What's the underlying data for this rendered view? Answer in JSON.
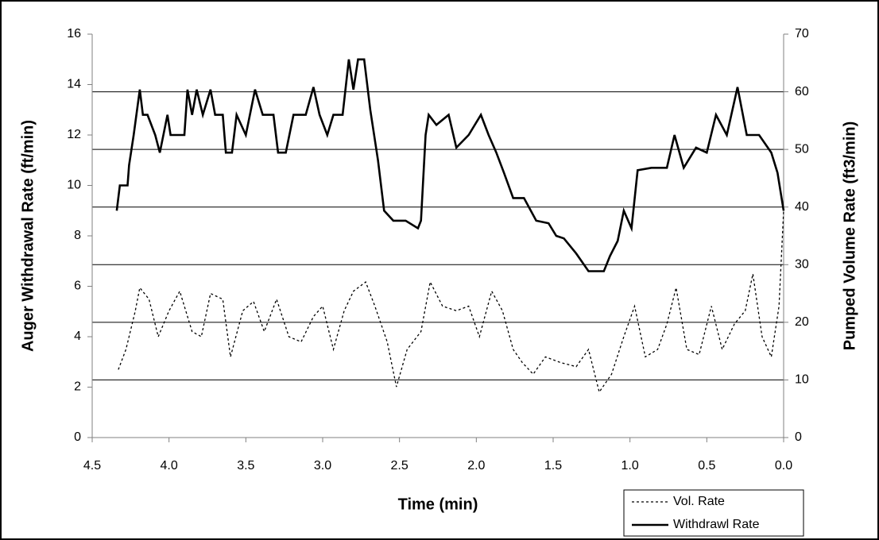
{
  "chart_data": {
    "type": "line",
    "xlabel": "Time (min)",
    "ylabel": "Auger Withdrawal Rate (ft/min)",
    "y2label": "Pumped Volume Rate (ft3/min)",
    "xlim": [
      4.5,
      0.0
    ],
    "xticks": [
      4.5,
      {
        "value": 4.0,
        "label": "4.0"
      },
      3.5,
      {
        "value": 3.0,
        "label": "3.0"
      },
      2.5,
      {
        "value": 2.0,
        "label": "2.0"
      },
      1.5,
      {
        "value": 1.0,
        "label": "1.0"
      },
      0.5,
      {
        "value": 0.0,
        "label": "0.0"
      }
    ],
    "ylim": [
      0,
      16
    ],
    "yticks": [
      0,
      2,
      4,
      6,
      8,
      10,
      12,
      14,
      16
    ],
    "y2lim": [
      0,
      70
    ],
    "y2ticks": [
      0,
      10,
      20,
      30,
      40,
      50,
      60,
      70
    ],
    "grid": "y2",
    "legend": "bottom-right",
    "series": [
      {
        "name": "Vol. Rate",
        "color": "#000000",
        "line_style": "dashed",
        "axis": "y2",
        "x": [
          4.33,
          4.28,
          4.22,
          4.19,
          4.13,
          4.07,
          4.0,
          3.93,
          3.85,
          3.79,
          3.73,
          3.65,
          3.6,
          3.52,
          3.45,
          3.38,
          3.3,
          3.22,
          3.14,
          3.06,
          3.0,
          2.93,
          2.86,
          2.8,
          2.72,
          2.66,
          2.58,
          2.52,
          2.45,
          2.36,
          2.3,
          2.22,
          2.13,
          2.05,
          1.98,
          1.9,
          1.83,
          1.76,
          1.7,
          1.63,
          1.55,
          1.45,
          1.35,
          1.27,
          1.2,
          1.12,
          1.04,
          0.97,
          0.9,
          0.82,
          0.76,
          0.7,
          0.63,
          0.55,
          0.47,
          0.4,
          0.32,
          0.25,
          0.2,
          0.14,
          0.08,
          0.03,
          0.0
        ],
        "values": [
          11.8,
          15.3,
          21.9,
          26,
          24,
          17.5,
          22,
          25.4,
          18.4,
          17.5,
          25,
          24,
          14,
          22,
          23.6,
          18.4,
          24,
          17.5,
          16.6,
          21,
          22.8,
          15.3,
          22,
          25.4,
          27,
          22.8,
          16.6,
          8.8,
          15.3,
          18.4,
          27,
          22.8,
          22,
          22.8,
          17.5,
          25.4,
          22,
          15.3,
          13,
          11,
          14,
          13,
          12.3,
          15.3,
          7.9,
          11,
          17.5,
          22.8,
          14,
          15.3,
          19.7,
          26,
          15.3,
          14.4,
          22.8,
          15.3,
          19.7,
          22,
          28.4,
          17.5,
          14,
          22.8,
          39.4
        ]
      },
      {
        "name": "Withdrawl Rate",
        "color": "#000000",
        "line_style": "solid",
        "axis": "y",
        "x": [
          4.34,
          4.32,
          4.27,
          4.26,
          4.23,
          4.19,
          4.17,
          4.14,
          4.09,
          4.06,
          4.01,
          3.99,
          3.9,
          3.88,
          3.85,
          3.82,
          3.78,
          3.73,
          3.7,
          3.65,
          3.63,
          3.59,
          3.56,
          3.5,
          3.44,
          3.39,
          3.32,
          3.29,
          3.24,
          3.19,
          3.11,
          3.06,
          3.02,
          2.97,
          2.93,
          2.87,
          2.83,
          2.8,
          2.77,
          2.73,
          2.69,
          2.64,
          2.6,
          2.54,
          2.46,
          2.38,
          2.36,
          2.33,
          2.31,
          2.26,
          2.18,
          2.13,
          2.05,
          1.97,
          1.92,
          1.87,
          1.82,
          1.76,
          1.69,
          1.61,
          1.53,
          1.48,
          1.43,
          1.35,
          1.27,
          1.17,
          1.13,
          1.08,
          1.04,
          0.99,
          0.95,
          0.86,
          0.76,
          0.71,
          0.65,
          0.57,
          0.5,
          0.44,
          0.37,
          0.3,
          0.24,
          0.16,
          0.08,
          0.04,
          0.0
        ],
        "values": [
          9.0,
          10,
          10,
          10.8,
          12,
          13.8,
          12.8,
          12.8,
          12,
          11.3,
          12.8,
          12,
          12,
          13.8,
          12.8,
          13.8,
          12.8,
          13.8,
          12.8,
          12.8,
          11.3,
          11.3,
          12.8,
          12,
          13.8,
          12.8,
          12.8,
          11.3,
          11.3,
          12.8,
          12.8,
          13.9,
          12.8,
          12,
          12.8,
          12.8,
          15,
          13.8,
          15,
          15,
          13,
          11,
          9,
          8.6,
          8.6,
          8.3,
          8.6,
          12,
          12.8,
          12.4,
          12.8,
          11.5,
          12,
          12.8,
          12,
          11.3,
          10.5,
          9.5,
          9.5,
          8.6,
          8.5,
          8,
          7.9,
          7.3,
          6.6,
          6.6,
          7.2,
          7.8,
          9,
          8.3,
          10.6,
          10.7,
          10.7,
          12,
          10.7,
          11.5,
          11.3,
          12.8,
          12,
          13.9,
          12,
          12,
          11.3,
          10.5,
          9.0
        ]
      }
    ]
  }
}
